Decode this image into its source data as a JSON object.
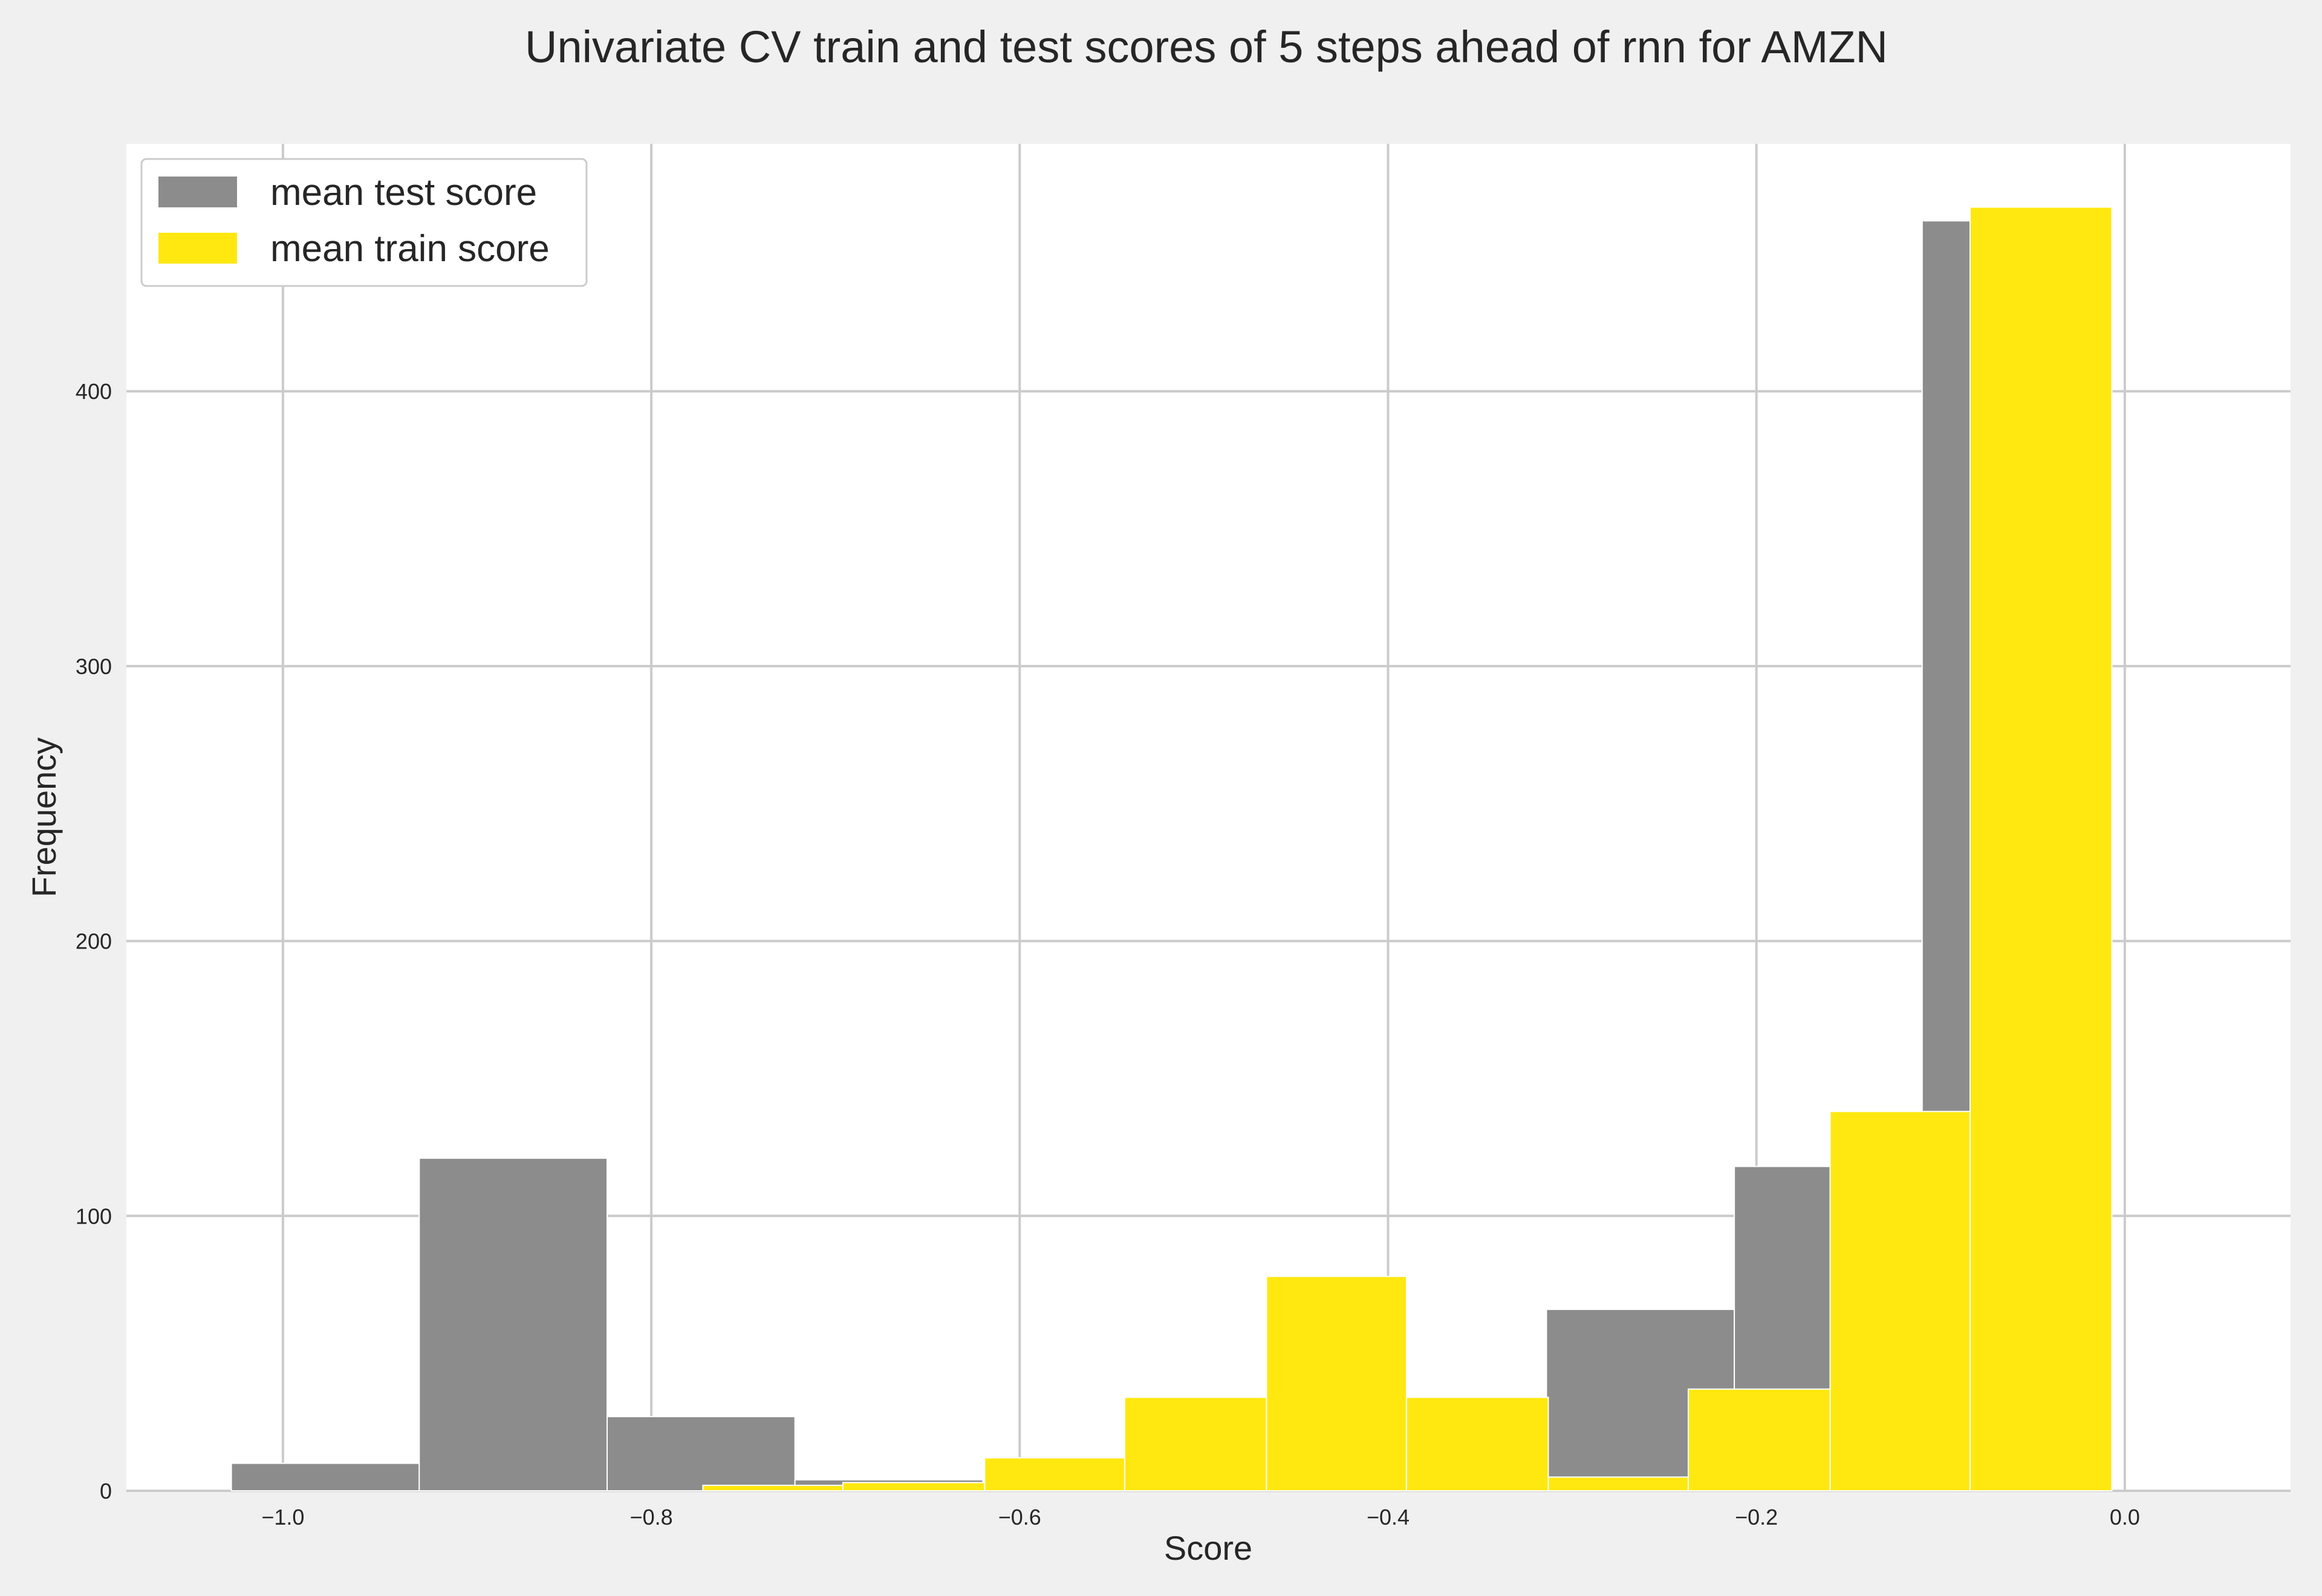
{
  "chart_data": {
    "type": "bar",
    "title": "Univariate CV train and test scores of 5 steps ahead of rnn for AMZN",
    "xlabel": "Score",
    "ylabel": "Frequency",
    "xlim": [
      -1.085,
      0.09
    ],
    "ylim": [
      0,
      490
    ],
    "xticks": [
      -1.0,
      -0.8,
      -0.6,
      -0.4,
      -0.2,
      0.0
    ],
    "xtick_labels": [
      "−1.0",
      "−0.8",
      "−0.6",
      "−0.4",
      "−0.2",
      "0.0"
    ],
    "yticks": [
      0,
      100,
      200,
      300,
      400
    ],
    "ytick_labels": [
      "0",
      "100",
      "200",
      "300",
      "400"
    ],
    "grid": true,
    "legend_position": "top-left",
    "series": [
      {
        "name": "mean test score",
        "color": "#8c8c8c",
        "bins": [
          {
            "x0": -1.028,
            "x1": -0.926,
            "count": 10
          },
          {
            "x0": -0.926,
            "x1": -0.824,
            "count": 121
          },
          {
            "x0": -0.824,
            "x1": -0.722,
            "count": 27
          },
          {
            "x0": -0.722,
            "x1": -0.62,
            "count": 4
          },
          {
            "x0": -0.62,
            "x1": -0.518,
            "count": 0
          },
          {
            "x0": -0.518,
            "x1": -0.416,
            "count": 0
          },
          {
            "x0": -0.416,
            "x1": -0.314,
            "count": 0
          },
          {
            "x0": -0.314,
            "x1": -0.212,
            "count": 66
          },
          {
            "x0": -0.212,
            "x1": -0.11,
            "count": 118
          },
          {
            "x0": -0.11,
            "x1": -0.008,
            "count": 462
          }
        ]
      },
      {
        "name": "mean train score",
        "color": "#ffe80f",
        "bins": [
          {
            "x0": -0.772,
            "x1": -0.696,
            "count": 2
          },
          {
            "x0": -0.696,
            "x1": -0.619,
            "count": 3
          },
          {
            "x0": -0.619,
            "x1": -0.543,
            "count": 12
          },
          {
            "x0": -0.543,
            "x1": -0.466,
            "count": 34
          },
          {
            "x0": -0.466,
            "x1": -0.39,
            "count": 78
          },
          {
            "x0": -0.39,
            "x1": -0.313,
            "count": 34
          },
          {
            "x0": -0.313,
            "x1": -0.237,
            "count": 5
          },
          {
            "x0": -0.237,
            "x1": -0.16,
            "count": 37
          },
          {
            "x0": -0.16,
            "x1": -0.084,
            "count": 138
          },
          {
            "x0": -0.084,
            "x1": -0.007,
            "count": 467
          }
        ]
      }
    ]
  }
}
